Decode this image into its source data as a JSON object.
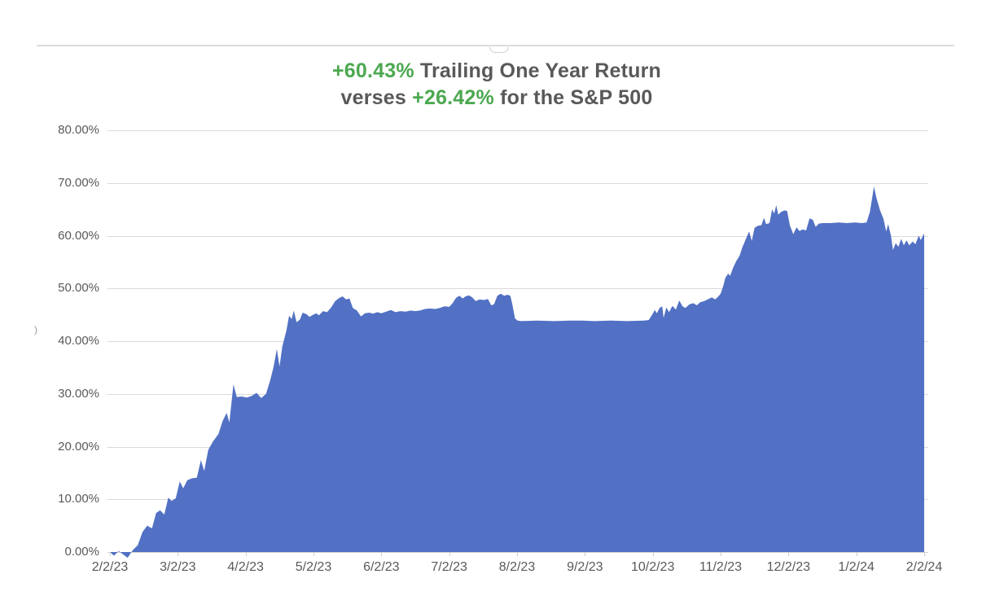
{
  "title": {
    "return_value": "+60.43%",
    "return_text": " Trailing One Year Return",
    "line2_lead": "verses ",
    "sp500_value": "+26.42%",
    "sp500_text": " for the S&P 500"
  },
  "misc": {
    "axis_fragment": ")"
  },
  "colors": {
    "area_fill": "#5271c4",
    "title_gray": "#595959",
    "accent_green": "#4ca850",
    "gridline": "#dadada",
    "tick_label": "#595959"
  },
  "y_axis": {
    "labels": [
      "80.00%",
      "70.00%",
      "60.00%",
      "50.00%",
      "40.00%",
      "30.00%",
      "20.00%",
      "10.00%",
      "0.00%"
    ]
  },
  "x_axis": {
    "labels": [
      "2/2/23",
      "3/2/23",
      "4/2/23",
      "5/2/23",
      "6/2/23",
      "7/2/23",
      "8/2/23",
      "9/2/23",
      "10/2/23",
      "11/2/23",
      "12/2/23",
      "1/2/24",
      "2/2/24"
    ]
  },
  "chart_data": {
    "type": "area",
    "title": "+60.43% Trailing One Year Return verses +26.42% for the S&P 500",
    "series_name": "Trailing One Year Return",
    "final_return_pct": 60.43,
    "sp500_return_pct": 26.42,
    "xlabel": "",
    "ylabel": "",
    "x_unit": "months since 2/2/23",
    "x_tick_labels": [
      "2/2/23",
      "3/2/23",
      "4/2/23",
      "5/2/23",
      "6/2/23",
      "7/2/23",
      "8/2/23",
      "9/2/23",
      "10/2/23",
      "11/2/23",
      "12/2/23",
      "1/2/24",
      "2/2/24"
    ],
    "ylim": [
      0,
      80
    ],
    "y_tick_step_pct": 10,
    "grid": true,
    "legend": false,
    "points": [
      [
        0.0,
        0.0
      ],
      [
        0.06,
        -0.7
      ],
      [
        0.13,
        0.2
      ],
      [
        0.19,
        -0.4
      ],
      [
        0.26,
        -1.1
      ],
      [
        0.34,
        0.4
      ],
      [
        0.41,
        1.3
      ],
      [
        0.48,
        3.8
      ],
      [
        0.55,
        5.0
      ],
      [
        0.62,
        4.5
      ],
      [
        0.68,
        7.4
      ],
      [
        0.74,
        7.9
      ],
      [
        0.8,
        7.1
      ],
      [
        0.86,
        10.3
      ],
      [
        0.91,
        9.7
      ],
      [
        0.97,
        10.2
      ],
      [
        1.03,
        13.4
      ],
      [
        1.08,
        12.1
      ],
      [
        1.14,
        13.6
      ],
      [
        1.21,
        14.0
      ],
      [
        1.28,
        14.1
      ],
      [
        1.34,
        17.4
      ],
      [
        1.39,
        15.4
      ],
      [
        1.45,
        19.4
      ],
      [
        1.52,
        21.0
      ],
      [
        1.6,
        22.4
      ],
      [
        1.66,
        24.8
      ],
      [
        1.72,
        26.4
      ],
      [
        1.76,
        24.6
      ],
      [
        1.82,
        31.8
      ],
      [
        1.87,
        29.4
      ],
      [
        1.94,
        29.5
      ],
      [
        2.02,
        29.3
      ],
      [
        2.09,
        29.6
      ],
      [
        2.16,
        30.2
      ],
      [
        2.23,
        29.2
      ],
      [
        2.3,
        30.0
      ],
      [
        2.36,
        32.5
      ],
      [
        2.41,
        35.0
      ],
      [
        2.46,
        38.5
      ],
      [
        2.5,
        35.2
      ],
      [
        2.54,
        39.0
      ],
      [
        2.6,
        42.0
      ],
      [
        2.64,
        44.8
      ],
      [
        2.68,
        44.2
      ],
      [
        2.71,
        45.8
      ],
      [
        2.75,
        43.6
      ],
      [
        2.8,
        44.1
      ],
      [
        2.84,
        45.4
      ],
      [
        2.9,
        45.1
      ],
      [
        2.94,
        44.6
      ],
      [
        2.98,
        44.9
      ],
      [
        3.04,
        45.3
      ],
      [
        3.08,
        44.9
      ],
      [
        3.14,
        45.7
      ],
      [
        3.2,
        45.5
      ],
      [
        3.26,
        46.4
      ],
      [
        3.32,
        47.6
      ],
      [
        3.38,
        48.2
      ],
      [
        3.43,
        48.5
      ],
      [
        3.48,
        47.9
      ],
      [
        3.53,
        48.1
      ],
      [
        3.58,
        46.3
      ],
      [
        3.64,
        45.8
      ],
      [
        3.7,
        44.7
      ],
      [
        3.76,
        45.3
      ],
      [
        3.82,
        45.4
      ],
      [
        3.88,
        45.2
      ],
      [
        3.94,
        45.5
      ],
      [
        4.0,
        45.3
      ],
      [
        4.07,
        45.6
      ],
      [
        4.14,
        45.9
      ],
      [
        4.21,
        45.5
      ],
      [
        4.28,
        45.7
      ],
      [
        4.36,
        45.6
      ],
      [
        4.43,
        45.8
      ],
      [
        4.5,
        45.7
      ],
      [
        4.57,
        45.8
      ],
      [
        4.64,
        46.1
      ],
      [
        4.72,
        46.2
      ],
      [
        4.79,
        46.1
      ],
      [
        4.86,
        46.3
      ],
      [
        4.93,
        46.6
      ],
      [
        5.0,
        46.5
      ],
      [
        5.05,
        47.2
      ],
      [
        5.1,
        48.2
      ],
      [
        5.15,
        48.6
      ],
      [
        5.2,
        48.1
      ],
      [
        5.24,
        48.5
      ],
      [
        5.29,
        48.7
      ],
      [
        5.34,
        48.3
      ],
      [
        5.39,
        47.6
      ],
      [
        5.45,
        47.9
      ],
      [
        5.51,
        47.8
      ],
      [
        5.57,
        48.0
      ],
      [
        5.62,
        46.8
      ],
      [
        5.66,
        47.0
      ],
      [
        5.71,
        48.6
      ],
      [
        5.76,
        49.0
      ],
      [
        5.81,
        48.6
      ],
      [
        5.86,
        48.8
      ],
      [
        5.9,
        48.6
      ],
      [
        5.93,
        47.0
      ],
      [
        5.97,
        44.3
      ],
      [
        6.01,
        43.9
      ],
      [
        6.06,
        43.8
      ],
      [
        6.3,
        43.9
      ],
      [
        6.54,
        43.8
      ],
      [
        6.78,
        43.9
      ],
      [
        6.96,
        43.9
      ],
      [
        7.14,
        43.8
      ],
      [
        7.38,
        43.9
      ],
      [
        7.62,
        43.8
      ],
      [
        7.86,
        43.9
      ],
      [
        7.94,
        44.0
      ],
      [
        7.99,
        45.0
      ],
      [
        8.03,
        45.9
      ],
      [
        8.06,
        45.3
      ],
      [
        8.1,
        46.3
      ],
      [
        8.14,
        46.6
      ],
      [
        8.16,
        44.4
      ],
      [
        8.2,
        46.4
      ],
      [
        8.24,
        45.5
      ],
      [
        8.29,
        46.7
      ],
      [
        8.34,
        46.0
      ],
      [
        8.39,
        47.7
      ],
      [
        8.44,
        46.6
      ],
      [
        8.48,
        46.3
      ],
      [
        8.54,
        47.0
      ],
      [
        8.6,
        47.2
      ],
      [
        8.65,
        46.8
      ],
      [
        8.7,
        47.4
      ],
      [
        8.76,
        47.6
      ],
      [
        8.82,
        48.0
      ],
      [
        8.87,
        48.3
      ],
      [
        8.92,
        47.9
      ],
      [
        8.96,
        48.4
      ],
      [
        9.0,
        49.0
      ],
      [
        9.04,
        50.5
      ],
      [
        9.07,
        52.0
      ],
      [
        9.11,
        52.8
      ],
      [
        9.14,
        52.4
      ],
      [
        9.18,
        53.8
      ],
      [
        9.23,
        55.2
      ],
      [
        9.28,
        56.2
      ],
      [
        9.32,
        57.8
      ],
      [
        9.37,
        59.3
      ],
      [
        9.42,
        60.8
      ],
      [
        9.46,
        59.0
      ],
      [
        9.5,
        61.5
      ],
      [
        9.55,
        61.9
      ],
      [
        9.6,
        62.0
      ],
      [
        9.64,
        63.4
      ],
      [
        9.67,
        62.2
      ],
      [
        9.72,
        62.4
      ],
      [
        9.76,
        65.0
      ],
      [
        9.79,
        64.2
      ],
      [
        9.82,
        65.8
      ],
      [
        9.85,
        64.0
      ],
      [
        9.89,
        64.5
      ],
      [
        9.94,
        64.8
      ],
      [
        9.98,
        64.7
      ],
      [
        10.02,
        62.0
      ],
      [
        10.07,
        60.3
      ],
      [
        10.12,
        61.6
      ],
      [
        10.16,
        60.9
      ],
      [
        10.21,
        61.2
      ],
      [
        10.26,
        61.0
      ],
      [
        10.31,
        63.3
      ],
      [
        10.36,
        63.0
      ],
      [
        10.4,
        61.7
      ],
      [
        10.45,
        62.3
      ],
      [
        10.5,
        62.4
      ],
      [
        10.62,
        62.4
      ],
      [
        10.74,
        62.5
      ],
      [
        10.86,
        62.4
      ],
      [
        10.98,
        62.5
      ],
      [
        11.08,
        62.4
      ],
      [
        11.15,
        62.5
      ],
      [
        11.2,
        64.5
      ],
      [
        11.26,
        69.3
      ],
      [
        11.3,
        67.0
      ],
      [
        11.35,
        64.8
      ],
      [
        11.4,
        63.2
      ],
      [
        11.44,
        60.8
      ],
      [
        11.47,
        62.2
      ],
      [
        11.51,
        60.0
      ],
      [
        11.54,
        57.3
      ],
      [
        11.58,
        58.6
      ],
      [
        11.62,
        57.9
      ],
      [
        11.66,
        59.4
      ],
      [
        11.7,
        58.2
      ],
      [
        11.74,
        59.1
      ],
      [
        11.78,
        58.2
      ],
      [
        11.83,
        58.9
      ],
      [
        11.87,
        58.4
      ],
      [
        11.92,
        60.0
      ],
      [
        11.95,
        59.2
      ],
      [
        12.0,
        60.43
      ]
    ]
  }
}
